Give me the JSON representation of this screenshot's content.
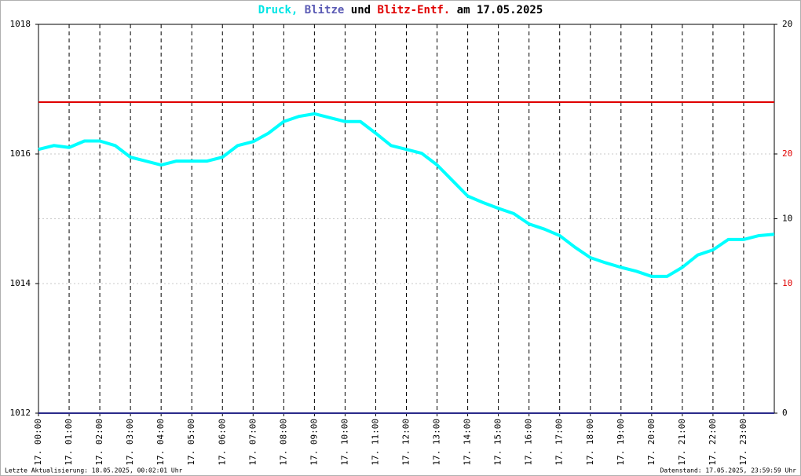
{
  "chart_data": {
    "type": "line",
    "title_parts": [
      {
        "text": "Druck,",
        "color": "#00e5e5"
      },
      {
        "text": "Blitze",
        "color": "#5a5ab4"
      },
      {
        "text": "und",
        "color": "#000000"
      },
      {
        "text": "Blitz-Entf.",
        "color": "#e00000"
      },
      {
        "text": "am 17.05.2025",
        "color": "#000000"
      }
    ],
    "xlim": [
      0,
      24
    ],
    "xticks": [
      {
        "value": 0,
        "label": "17. 00:00"
      },
      {
        "value": 1,
        "label": "17. 01:00"
      },
      {
        "value": 2,
        "label": "17. 02:00"
      },
      {
        "value": 3,
        "label": "17. 03:00"
      },
      {
        "value": 4,
        "label": "17. 04:00"
      },
      {
        "value": 5,
        "label": "17. 05:00"
      },
      {
        "value": 6,
        "label": "17. 06:00"
      },
      {
        "value": 7,
        "label": "17. 07:00"
      },
      {
        "value": 8,
        "label": "17. 08:00"
      },
      {
        "value": 9,
        "label": "17. 09:00"
      },
      {
        "value": 10,
        "label": "17. 10:00"
      },
      {
        "value": 11,
        "label": "17. 11:00"
      },
      {
        "value": 12,
        "label": "17. 12:00"
      },
      {
        "value": 13,
        "label": "17. 13:00"
      },
      {
        "value": 14,
        "label": "17. 14:00"
      },
      {
        "value": 15,
        "label": "17. 15:00"
      },
      {
        "value": 16,
        "label": "17. 16:00"
      },
      {
        "value": 17,
        "label": "17. 17:00"
      },
      {
        "value": 18,
        "label": "17. 18:00"
      },
      {
        "value": 19,
        "label": "17. 19:00"
      },
      {
        "value": 20,
        "label": "17. 20:00"
      },
      {
        "value": 21,
        "label": "17. 21:00"
      },
      {
        "value": 22,
        "label": "17. 22:00"
      },
      {
        "value": 23,
        "label": "17. 23:00"
      }
    ],
    "ylim": [
      1012,
      1018
    ],
    "yticks": [
      1012,
      1014,
      1016,
      1018
    ],
    "y2lim": [
      0,
      30
    ],
    "y2ticks": [
      10,
      20
    ],
    "y2color": "#e00000",
    "y3lim": [
      0,
      20
    ],
    "y3ticks": [
      0,
      10,
      20
    ],
    "y3color": "#000000",
    "series": [
      {
        "color": "#00ffff",
        "axis": "y",
        "x": [
          0,
          0.5,
          1,
          1.5,
          2,
          2.5,
          3,
          3.5,
          4,
          4.5,
          5,
          5.5,
          6,
          6.5,
          7,
          7.5,
          8,
          8.5,
          9,
          9.5,
          10,
          10.5,
          11,
          11.5,
          12,
          12.5,
          13,
          13.5,
          14,
          14.5,
          15,
          15.5,
          16,
          16.5,
          17,
          17.5,
          18,
          18.5,
          19,
          19.5,
          20,
          20.5,
          21,
          21.5,
          22,
          22.5,
          23,
          23.5,
          24
        ],
        "values": [
          1016.07,
          1016.13,
          1016.1,
          1016.2,
          1016.2,
          1016.13,
          1015.95,
          1015.89,
          1015.83,
          1015.89,
          1015.89,
          1015.89,
          1015.95,
          1016.13,
          1016.19,
          1016.32,
          1016.5,
          1016.58,
          1016.62,
          1016.56,
          1016.5,
          1016.5,
          1016.32,
          1016.13,
          1016.07,
          1016.01,
          1015.83,
          1015.59,
          1015.35,
          1015.25,
          1015.16,
          1015.08,
          1014.92,
          1014.84,
          1014.74,
          1014.56,
          1014.4,
          1014.32,
          1014.25,
          1014.19,
          1014.11,
          1014.11,
          1014.25,
          1014.44,
          1014.52,
          1014.68,
          1014.68,
          1014.74,
          1014.76
        ]
      },
      {
        "color": "#e00000",
        "axis": "y2",
        "x": [
          0,
          24
        ],
        "values": [
          24,
          24
        ]
      },
      {
        "color": "#2a2a8a",
        "axis": "y3",
        "x": [
          0,
          24
        ],
        "values": [
          0,
          0
        ]
      }
    ],
    "footer_left": "Letzte Aktualisierung: 18.05.2025, 00:02:01 Uhr",
    "footer_right": "Datenstand: 17.05.2025, 23:59:59 Uhr"
  }
}
